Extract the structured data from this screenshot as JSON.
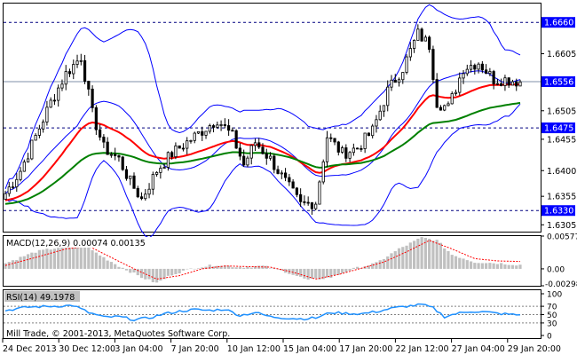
{
  "chart_data": [
    {
      "type": "candlestick",
      "panel": "price",
      "price_ylim": [
        1.6293,
        1.6693
      ],
      "horizontal_levels": [
        {
          "label": "1.6660",
          "value": 1.666,
          "style": "dashed",
          "tag": true
        },
        {
          "label": "1.6556",
          "value": 1.6556,
          "style": "solid-current",
          "tag": true
        },
        {
          "label": "1.6475",
          "value": 1.6475,
          "style": "dashed",
          "tag": true
        },
        {
          "label": "1.6330",
          "value": 1.633,
          "style": "dashed",
          "tag": true
        }
      ],
      "y_tick_labels": [
        "1.6605",
        "1.6505",
        "1.6455",
        "1.6400",
        "1.6355",
        "1.6305"
      ],
      "x_tick_labels": [
        "24 Dec 2013",
        "30 Dec 12:00",
        "3 Jan 04:00",
        "7 Jan 20:00",
        "10 Jan 12:00",
        "15 Jan 04:00",
        "17 Jan 20:00",
        "22 Jan 12:00",
        "27 Jan 04:00",
        "29 Jan 20:00"
      ],
      "close_anchors": [
        [
          0,
          1.636
        ],
        [
          4,
          1.64
        ],
        [
          8,
          1.646
        ],
        [
          12,
          1.652
        ],
        [
          16,
          1.657
        ],
        [
          20,
          1.66
        ],
        [
          23,
          1.65
        ],
        [
          26,
          1.644
        ],
        [
          30,
          1.642
        ],
        [
          33,
          1.638
        ],
        [
          36,
          1.635
        ],
        [
          40,
          1.64
        ],
        [
          44,
          1.643
        ],
        [
          48,
          1.645
        ],
        [
          52,
          1.647
        ],
        [
          56,
          1.649
        ],
        [
          60,
          1.646
        ],
        [
          63,
          1.641
        ],
        [
          66,
          1.645
        ],
        [
          70,
          1.642
        ],
        [
          74,
          1.638
        ],
        [
          78,
          1.634
        ],
        [
          82,
          1.6345
        ],
        [
          85,
          1.646
        ],
        [
          89,
          1.643
        ],
        [
          93,
          1.644
        ],
        [
          97,
          1.647
        ],
        [
          101,
          1.654
        ],
        [
          105,
          1.658
        ],
        [
          109,
          1.664
        ],
        [
          112,
          1.662
        ],
        [
          114,
          1.652
        ],
        [
          117,
          1.651
        ],
        [
          121,
          1.658
        ],
        [
          125,
          1.659
        ],
        [
          129,
          1.656
        ],
        [
          132,
          1.656
        ],
        [
          136,
          1.6556
        ]
      ],
      "indicators": [
        "Bollinger Bands",
        "Moving Average (red)",
        "Moving Average (green)"
      ],
      "colors": {
        "candle": "#000000",
        "bollinger": "#0000ff",
        "ma_fast": "#ff0000",
        "ma_slow": "#008000",
        "current_line": "#7f8fa8",
        "tag_bg": "#0000ff",
        "tag_text": "#ffffff"
      }
    },
    {
      "type": "histogram+line",
      "panel": "macd",
      "label": "MACD(12,26,9) 0.00074 0.00135",
      "y_tick_labels": [
        "0.00577",
        "0.00",
        "-0.00298"
      ],
      "ylim": [
        -0.00298,
        0.00577
      ],
      "histogram_anchors": [
        [
          0,
          0.001
        ],
        [
          8,
          0.003
        ],
        [
          16,
          0.004
        ],
        [
          20,
          0.0045
        ],
        [
          26,
          0.002
        ],
        [
          30,
          0.0005
        ],
        [
          36,
          -0.0015
        ],
        [
          40,
          -0.0025
        ],
        [
          44,
          -0.001
        ],
        [
          50,
          0.0002
        ],
        [
          56,
          0.0007
        ],
        [
          62,
          0.0003
        ],
        [
          68,
          0.0005
        ],
        [
          74,
          -0.0005
        ],
        [
          80,
          -0.002
        ],
        [
          86,
          -0.0015
        ],
        [
          92,
          0.0
        ],
        [
          98,
          0.001
        ],
        [
          104,
          0.0035
        ],
        [
          110,
          0.0055
        ],
        [
          114,
          0.005
        ],
        [
          118,
          0.0025
        ],
        [
          124,
          0.0012
        ],
        [
          130,
          0.001
        ],
        [
          136,
          0.0007
        ]
      ],
      "signal_anchors": [
        [
          0,
          0.0006
        ],
        [
          8,
          0.002
        ],
        [
          16,
          0.0035
        ],
        [
          22,
          0.004
        ],
        [
          28,
          0.002
        ],
        [
          34,
          0.0
        ],
        [
          40,
          -0.0018
        ],
        [
          46,
          -0.0012
        ],
        [
          52,
          0.0
        ],
        [
          58,
          0.0005
        ],
        [
          64,
          0.0004
        ],
        [
          70,
          0.0003
        ],
        [
          76,
          -0.0006
        ],
        [
          82,
          -0.0018
        ],
        [
          88,
          -0.001
        ],
        [
          94,
          0.0001
        ],
        [
          100,
          0.0012
        ],
        [
          106,
          0.003
        ],
        [
          112,
          0.005
        ],
        [
          118,
          0.0035
        ],
        [
          124,
          0.0018
        ],
        [
          130,
          0.0014
        ],
        [
          136,
          0.0013
        ]
      ],
      "colors": {
        "hist": "#c0c0c0",
        "signal": "#ff0000"
      }
    },
    {
      "type": "line",
      "panel": "rsi",
      "label": "RSI(14) 49.1978",
      "y_tick_labels": [
        "100",
        "70",
        "50",
        "30",
        "0"
      ],
      "ylim": [
        0,
        100
      ],
      "levels": [
        70,
        50,
        30
      ],
      "series_anchors": [
        [
          0,
          60
        ],
        [
          6,
          68
        ],
        [
          12,
          70
        ],
        [
          18,
          72
        ],
        [
          22,
          55
        ],
        [
          26,
          44
        ],
        [
          30,
          45
        ],
        [
          34,
          38
        ],
        [
          38,
          42
        ],
        [
          42,
          52
        ],
        [
          46,
          58
        ],
        [
          50,
          62
        ],
        [
          54,
          60
        ],
        [
          58,
          63
        ],
        [
          62,
          48
        ],
        [
          66,
          55
        ],
        [
          70,
          45
        ],
        [
          74,
          42
        ],
        [
          78,
          40
        ],
        [
          82,
          42
        ],
        [
          86,
          55
        ],
        [
          90,
          53
        ],
        [
          94,
          52
        ],
        [
          98,
          57
        ],
        [
          102,
          65
        ],
        [
          106,
          70
        ],
        [
          110,
          74
        ],
        [
          113,
          66
        ],
        [
          116,
          45
        ],
        [
          119,
          52
        ],
        [
          123,
          58
        ],
        [
          127,
          56
        ],
        [
          131,
          52
        ],
        [
          136,
          49
        ]
      ],
      "colors": {
        "line": "#1e90ff"
      }
    }
  ],
  "footer": {
    "copyright": "Mill Trade, © 2001-2013, MetaQuotes Software Corp."
  }
}
